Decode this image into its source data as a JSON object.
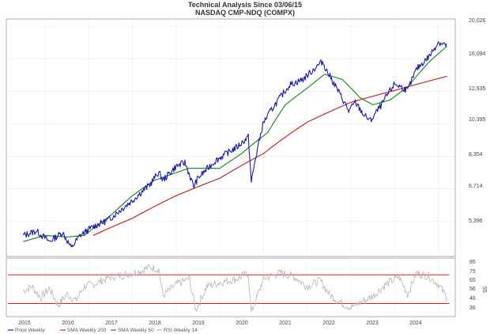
{
  "chart_data": {
    "type": "line",
    "title": "Technical Analysis Since 03/06/15",
    "subtitle": "NASDAQ CMP-NDQ (COMPX)",
    "x_ticks": [
      "2015",
      "2016",
      "2017",
      "2018",
      "2019",
      "2020",
      "2021",
      "2022",
      "2023",
      "2024"
    ],
    "y_ticks_price": [
      "20,026",
      "16,094",
      "12,935",
      "10,395",
      "8,354",
      "6,714",
      "5,396"
    ],
    "y_ticks_rsi": [
      "85",
      "75",
      "65",
      "56",
      "46",
      "36"
    ],
    "rsi_side_label": "55",
    "legend": [
      {
        "label": "Price Weekly",
        "color": "#1a1aa6"
      },
      {
        "label": "SMA Weekly 200",
        "color": "#c0282d"
      },
      {
        "label": "SMA Weekly 50",
        "color": "#2a8a2a"
      },
      {
        "label": "RSI Weekly 14",
        "color": "#b5b5b5"
      }
    ],
    "colors": {
      "price": "#1a1aa6",
      "sma200": "#c0282d",
      "sma50": "#2a8a2a",
      "rsi": "#b5b5b5",
      "rsi_bands": "#d42020"
    },
    "price": {
      "x": [
        2015.0,
        2015.3,
        2015.6,
        2015.9,
        2016.1,
        2016.3,
        2016.6,
        2016.9,
        2017.0,
        2017.5,
        2017.9,
        2018.1,
        2018.2,
        2018.5,
        2018.7,
        2018.9,
        2019.0,
        2019.4,
        2019.9,
        2020.15,
        2020.22,
        2020.5,
        2020.9,
        2021.1,
        2021.4,
        2021.85,
        2021.95,
        2022.2,
        2022.45,
        2022.6,
        2022.8,
        2022.95,
        2023.2,
        2023.5,
        2023.8,
        2024.0,
        2024.3,
        2024.5,
        2024.7
      ],
      "y": [
        4900,
        5050,
        4700,
        5000,
        4500,
        4900,
        5200,
        5400,
        5500,
        6200,
        6900,
        7500,
        7100,
        7800,
        8000,
        6800,
        7200,
        8100,
        8900,
        9500,
        7000,
        10500,
        12500,
        13500,
        14000,
        15800,
        14800,
        13000,
        11300,
        12000,
        11000,
        10600,
        11800,
        13600,
        13000,
        15000,
        16400,
        18000,
        17600
      ]
    },
    "sma200": {
      "x": [
        2016.6,
        2017.5,
        2018.5,
        2019.5,
        2020.5,
        2021.5,
        2022.5,
        2023.5,
        2024.7
      ],
      "y": [
        4900,
        5500,
        6400,
        7200,
        8500,
        10500,
        12000,
        13000,
        14300
      ]
    },
    "sma50": {
      "x": [
        2015.0,
        2015.5,
        2016.0,
        2016.4,
        2017.0,
        2017.5,
        2018.0,
        2018.8,
        2019.5,
        2020.0,
        2020.6,
        2021.0,
        2021.5,
        2021.9,
        2022.3,
        2022.7,
        2023.0,
        2023.4,
        2023.8,
        2024.3,
        2024.7
      ],
      "y": [
        4700,
        4900,
        4850,
        4900,
        5600,
        6400,
        7100,
        7700,
        7700,
        8500,
        9800,
        11800,
        13200,
        14500,
        14000,
        12400,
        11800,
        12200,
        13300,
        15800,
        17500
      ]
    },
    "rsi": {
      "x": [
        2015.0,
        2015.2,
        2015.4,
        2015.6,
        2015.8,
        2016.0,
        2016.2,
        2016.4,
        2016.6,
        2016.8,
        2017.0,
        2017.3,
        2017.6,
        2017.9,
        2018.1,
        2018.2,
        2018.5,
        2018.8,
        2018.95,
        2019.2,
        2019.5,
        2019.9,
        2020.15,
        2020.22,
        2020.5,
        2020.9,
        2021.2,
        2021.5,
        2021.8,
        2022.0,
        2022.3,
        2022.5,
        2022.8,
        2023.0,
        2023.3,
        2023.6,
        2023.8,
        2024.0,
        2024.3,
        2024.5,
        2024.7
      ],
      "y": [
        55,
        60,
        48,
        58,
        40,
        52,
        45,
        60,
        62,
        66,
        70,
        72,
        75,
        80,
        78,
        50,
        62,
        68,
        35,
        60,
        64,
        68,
        74,
        32,
        68,
        74,
        70,
        60,
        66,
        52,
        42,
        38,
        45,
        50,
        62,
        70,
        52,
        74,
        70,
        62,
        48
      ]
    },
    "rsi_bands": [
      72,
      42
    ],
    "price_range": [
      4300,
      20800
    ],
    "rsi_range": [
      30,
      88
    ],
    "x_range": [
      2014.65,
      2024.85
    ]
  }
}
